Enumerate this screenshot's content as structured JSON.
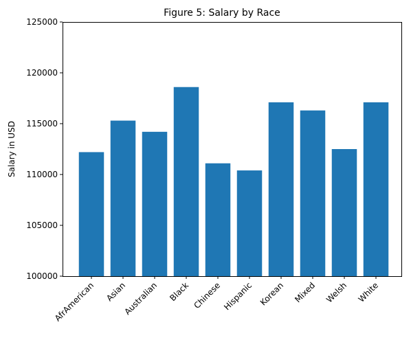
{
  "chart_data": {
    "type": "bar",
    "title": "Figure 5: Salary by Race",
    "xlabel": "",
    "ylabel": "Salary in USD",
    "categories": [
      "AfrAmerican",
      "Asian",
      "Australian",
      "Black",
      "Chinese",
      "Hispanic",
      "Korean",
      "Mixed",
      "Welsh",
      "White"
    ],
    "values": [
      112200,
      115300,
      114200,
      118600,
      111100,
      110400,
      117100,
      116300,
      112500,
      117100
    ],
    "ylim": [
      100000,
      125000
    ],
    "yticks": [
      100000,
      105000,
      110000,
      115000,
      120000,
      125000
    ],
    "grid": false,
    "bar_color": "#1f77b4"
  }
}
